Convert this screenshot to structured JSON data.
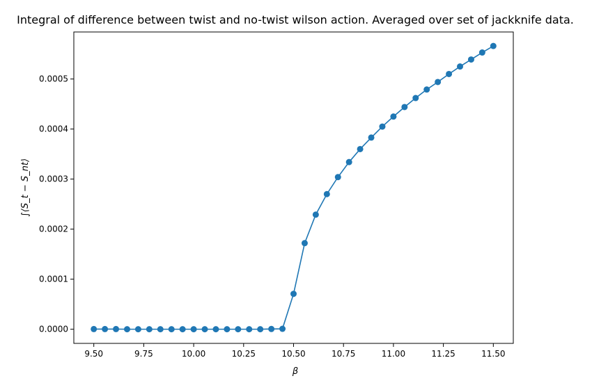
{
  "chart_data": {
    "type": "line",
    "title": "Integral of difference between twist and no-twist wilson action. Averaged over set of jackknife data.",
    "xlabel": "β",
    "ylabel": "∫⟨S_t − S_nt⟩",
    "xlim": [
      9.4,
      11.6
    ],
    "ylim": [
      -2.83e-05,
      0.000594
    ],
    "x_ticks": [
      9.5,
      9.75,
      10.0,
      10.25,
      10.5,
      10.75,
      11.0,
      11.25,
      11.5
    ],
    "x_tick_labels": [
      "9.50",
      "9.75",
      "10.00",
      "10.25",
      "10.50",
      "10.75",
      "11.00",
      "11.25",
      "11.50"
    ],
    "y_ticks": [
      0,
      0.0001,
      0.0002,
      0.0003,
      0.0004,
      0.0005
    ],
    "y_tick_labels": [
      "0.0000",
      "0.0001",
      "0.0002",
      "0.0003",
      "0.0004",
      "0.0005"
    ],
    "grid": false,
    "marker": "circle",
    "color": "#1f77b4",
    "series": [
      {
        "x": [
          9.5,
          9.5556,
          9.6111,
          9.6667,
          9.7222,
          9.7778,
          9.8333,
          9.8889,
          9.9444,
          10.0,
          10.0556,
          10.1111,
          10.1667,
          10.2222,
          10.2778,
          10.3333,
          10.3889,
          10.4444,
          10.5,
          10.5556,
          10.6111,
          10.6667,
          10.7222,
          10.7778,
          10.8333,
          10.8889,
          10.9444,
          11.0,
          11.0556,
          11.1111,
          11.1667,
          11.2222,
          11.2778,
          11.3333,
          11.3889,
          11.4444,
          11.5
        ],
        "y": [
          3e-07,
          3e-07,
          3e-07,
          0.0,
          0.0,
          0.0,
          0.0,
          0.0,
          0.0,
          0.0,
          0.0,
          0.0,
          0.0,
          0.0,
          0.0,
          0.0,
          5e-07,
          8e-07,
          7.07e-05,
          0.000172,
          0.000229,
          0.00027,
          0.000304,
          0.000334,
          0.00036,
          0.000383,
          0.000405,
          0.000425,
          0.000444,
          0.000462,
          0.000479,
          0.000494,
          0.00051,
          0.000525,
          0.000539,
          0.000553,
          0.000566
        ]
      }
    ]
  }
}
